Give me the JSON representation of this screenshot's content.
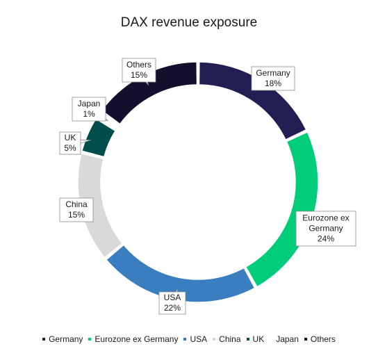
{
  "chart_data": {
    "type": "pie",
    "title": "DAX revenue exposure",
    "donut": true,
    "legend_position": "bottom",
    "slices": [
      {
        "label": "Germany",
        "value": 18,
        "value_label": "18%",
        "color": "#221d52"
      },
      {
        "label": "Eurozone ex Germany",
        "value": 24,
        "value_label": "24%",
        "color": "#00cc7a"
      },
      {
        "label": "USA",
        "value": 22,
        "value_label": "22%",
        "color": "#3b7ec0"
      },
      {
        "label": "China",
        "value": 15,
        "value_label": "15%",
        "color": "#d9d9d9"
      },
      {
        "label": "UK",
        "value": 5,
        "value_label": "5%",
        "color": "#004d4d"
      },
      {
        "label": "Japan",
        "value": 1,
        "value_label": "1%",
        "color": "#ffffff"
      },
      {
        "label": "Others",
        "value": 15,
        "value_label": "15%",
        "color": "#13102e"
      }
    ]
  }
}
